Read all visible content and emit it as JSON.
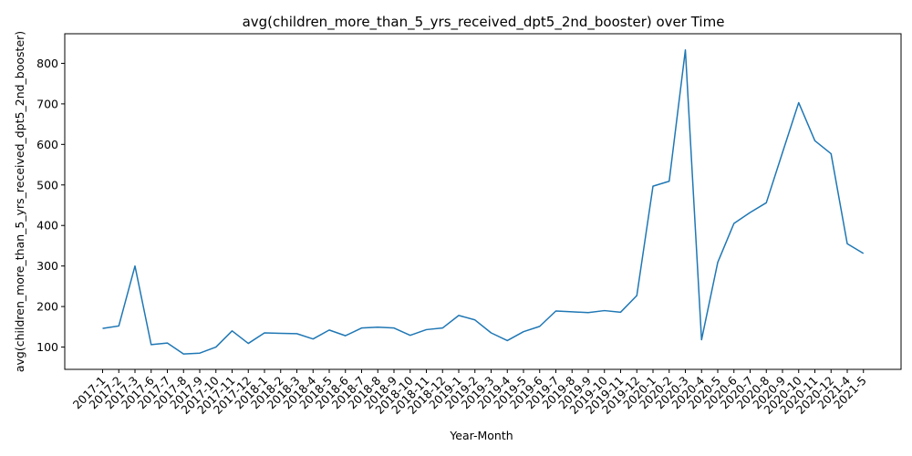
{
  "chart_data": {
    "type": "line",
    "title": "avg(children_more_than_5_yrs_received_dpt5_2nd_booster) over Time",
    "xlabel": "Year-Month",
    "ylabel": "avg(children_more_than_5_yrs_received_dpt5_2nd_booster)",
    "ylim": [
      45,
      873
    ],
    "yticks": [
      100,
      200,
      300,
      400,
      500,
      600,
      700,
      800
    ],
    "grid": false,
    "legend": "none",
    "line_color": "#1f77b4",
    "categories": [
      "2017-1",
      "2017-2",
      "2017-3",
      "2017-6",
      "2017-7",
      "2017-8",
      "2017-9",
      "2017-10",
      "2017-11",
      "2017-12",
      "2018-1",
      "2018-2",
      "2018-3",
      "2018-4",
      "2018-5",
      "2018-6",
      "2018-7",
      "2018-8",
      "2018-9",
      "2018-10",
      "2018-11",
      "2018-12",
      "2019-1",
      "2019-2",
      "2019-3",
      "2019-4",
      "2019-5",
      "2019-6",
      "2019-7",
      "2019-8",
      "2019-9",
      "2019-10",
      "2019-11",
      "2019-12",
      "2020-1",
      "2020-2",
      "2020-3",
      "2020-4",
      "2020-5",
      "2020-6",
      "2020-7",
      "2020-8",
      "2020-9",
      "2020-10",
      "2020-11",
      "2020-12",
      "2021-4",
      "2021-5"
    ],
    "values": [
      146,
      152,
      300,
      106,
      110,
      83,
      85,
      100,
      140,
      109,
      135,
      134,
      133,
      120,
      142,
      128,
      147,
      149,
      147,
      129,
      143,
      147,
      178,
      167,
      135,
      116,
      138,
      151,
      189,
      187,
      185,
      190,
      186,
      227,
      497,
      509,
      833,
      118,
      309,
      405,
      432,
      456,
      580,
      703,
      609,
      577,
      355,
      331
    ]
  }
}
